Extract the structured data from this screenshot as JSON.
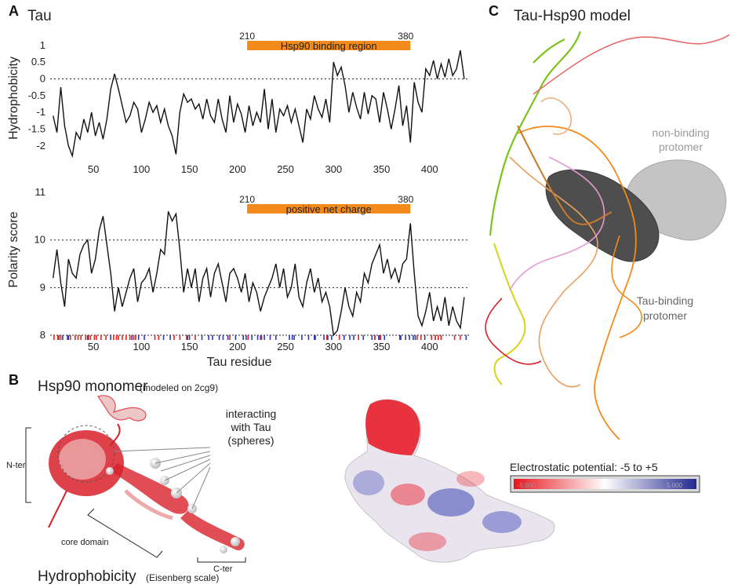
{
  "panels": {
    "a": {
      "letter": "A",
      "title": "Tau"
    },
    "b": {
      "letter": "B",
      "title": "Hsp90 monomer",
      "subtitle": "(modeled on 2cg9)"
    },
    "c": {
      "letter": "C",
      "title": "Tau-Hsp90 model"
    }
  },
  "chart_data": [
    {
      "type": "line",
      "id": "hydrophobicity",
      "ylabel": "Hydrophobicity",
      "xlabel": "",
      "xlim": [
        5,
        441
      ],
      "ylim": [
        -2.45,
        1.3
      ],
      "xticks": [
        50,
        100,
        150,
        200,
        250,
        300,
        350,
        400
      ],
      "yticks": [
        1,
        0.5,
        0,
        -0.5,
        -1,
        -1.5,
        -2
      ],
      "ytick_labels": [
        "1",
        "0.5",
        "0",
        "-0.5",
        "-1",
        "-1.5",
        "-2"
      ],
      "reference_lines": [
        0
      ],
      "region": {
        "start": 210,
        "end": 380,
        "label": "Hsp90 binding region",
        "color": "#f28a1c"
      },
      "x": [
        8,
        12,
        16,
        20,
        24,
        28,
        32,
        36,
        40,
        44,
        48,
        52,
        56,
        60,
        64,
        68,
        72,
        76,
        80,
        84,
        88,
        92,
        96,
        100,
        104,
        108,
        112,
        116,
        120,
        124,
        128,
        132,
        136,
        140,
        144,
        148,
        152,
        156,
        160,
        164,
        168,
        172,
        176,
        180,
        184,
        188,
        192,
        196,
        200,
        204,
        208,
        212,
        216,
        220,
        224,
        228,
        232,
        236,
        240,
        244,
        248,
        252,
        256,
        260,
        264,
        268,
        272,
        276,
        280,
        284,
        288,
        292,
        296,
        300,
        304,
        308,
        312,
        316,
        320,
        324,
        328,
        332,
        336,
        340,
        344,
        348,
        352,
        356,
        360,
        364,
        368,
        372,
        376,
        380,
        384,
        388,
        392,
        396,
        400,
        404,
        408,
        412,
        416,
        420,
        424,
        428,
        432,
        436
      ],
      "values": [
        -1.1,
        -1.6,
        -0.25,
        -1.4,
        -2.0,
        -2.3,
        -1.6,
        -1.8,
        -1.2,
        -1.6,
        -1.0,
        -1.7,
        -1.3,
        -1.8,
        -1.2,
        -0.3,
        0.15,
        -0.3,
        -0.8,
        -1.3,
        -1.1,
        -0.7,
        -0.9,
        -1.6,
        -1.2,
        -0.7,
        -1.0,
        -0.8,
        -1.3,
        -0.9,
        -1.4,
        -1.7,
        -2.25,
        -1.0,
        -0.45,
        -0.7,
        -0.6,
        -0.9,
        -0.75,
        -1.2,
        -0.6,
        -1.1,
        -1.3,
        -0.6,
        -1.2,
        -1.6,
        -0.5,
        -1.3,
        -0.75,
        -1.05,
        -1.6,
        -0.8,
        -1.4,
        -1.0,
        -1.3,
        -0.3,
        -1.5,
        -0.6,
        -1.6,
        -0.9,
        -1.1,
        -0.8,
        -1.3,
        -0.9,
        -1.4,
        -1.9,
        -0.9,
        -1.2,
        -0.5,
        -0.9,
        -1.15,
        -0.6,
        -1.3,
        0.5,
        0.1,
        0.35,
        -0.2,
        -1.0,
        -0.4,
        -0.85,
        -1.2,
        -0.4,
        -1.05,
        -0.5,
        -0.6,
        -1.3,
        -0.4,
        -0.9,
        -1.5,
        -0.9,
        -0.2,
        -1.4,
        -0.8,
        -1.9,
        -0.1,
        -0.7,
        -1.0,
        0.3,
        0.1,
        0.55,
        0.0,
        0.45,
        0.05,
        0.6,
        0.1,
        0.3,
        0.85,
        0.0
      ]
    },
    {
      "type": "line",
      "id": "polarity",
      "ylabel": "Polarity score",
      "xlabel": "Tau residue",
      "xlim": [
        5,
        441
      ],
      "ylim": [
        7.9,
        11.2
      ],
      "xticks": [
        50,
        100,
        150,
        200,
        250,
        300,
        350,
        400
      ],
      "yticks": [
        8,
        9,
        10,
        11
      ],
      "ytick_labels": [
        "8",
        "9",
        "10",
        "11"
      ],
      "reference_lines": [
        8,
        9,
        10
      ],
      "region": {
        "start": 210,
        "end": 380,
        "label": "positive net charge",
        "color": "#f28a1c"
      },
      "x": [
        8,
        12,
        16,
        20,
        24,
        28,
        32,
        36,
        40,
        44,
        48,
        52,
        56,
        60,
        64,
        68,
        72,
        76,
        80,
        84,
        88,
        92,
        96,
        100,
        104,
        108,
        112,
        116,
        120,
        124,
        128,
        132,
        136,
        140,
        144,
        148,
        152,
        156,
        160,
        164,
        168,
        172,
        176,
        180,
        184,
        188,
        192,
        196,
        200,
        204,
        208,
        212,
        216,
        220,
        224,
        228,
        232,
        236,
        240,
        244,
        248,
        252,
        256,
        260,
        264,
        268,
        272,
        276,
        280,
        284,
        288,
        292,
        296,
        300,
        304,
        308,
        312,
        316,
        320,
        324,
        328,
        332,
        336,
        340,
        344,
        348,
        352,
        356,
        360,
        364,
        368,
        372,
        376,
        380,
        384,
        388,
        392,
        396,
        400,
        404,
        408,
        412,
        416,
        420,
        424,
        428,
        432,
        436
      ],
      "values": [
        9.2,
        9.8,
        9.1,
        8.6,
        9.6,
        9.3,
        9.2,
        9.7,
        9.9,
        10.0,
        9.3,
        9.6,
        10.2,
        10.5,
        9.9,
        9.3,
        8.5,
        9.0,
        8.6,
        8.9,
        9.2,
        9.4,
        8.7,
        9.1,
        9.2,
        9.4,
        8.9,
        9.3,
        9.8,
        9.7,
        10.6,
        10.4,
        10.55,
        9.8,
        8.9,
        9.4,
        9.0,
        9.4,
        8.7,
        9.2,
        9.4,
        8.8,
        9.3,
        9.5,
        9.1,
        8.7,
        9.3,
        9.4,
        9.2,
        8.9,
        9.3,
        8.7,
        9.1,
        8.9,
        8.5,
        8.8,
        9.0,
        9.2,
        9.5,
        9.0,
        9.4,
        8.8,
        9.0,
        9.5,
        8.8,
        8.6,
        9.1,
        9.4,
        8.9,
        9.2,
        8.7,
        8.9,
        8.6,
        8.0,
        8.1,
        8.5,
        9.0,
        8.6,
        8.4,
        8.9,
        8.7,
        9.3,
        9.1,
        9.5,
        9.7,
        9.9,
        9.3,
        9.6,
        9.2,
        9.4,
        9.1,
        9.5,
        9.6,
        10.35,
        9.3,
        8.4,
        8.2,
        8.5,
        8.9,
        8.3,
        8.6,
        8.3,
        8.8,
        8.2,
        8.6,
        8.3,
        8.15,
        8.8
      ]
    }
  ],
  "charge_ticks": {
    "positive_color": "#2b3cb0",
    "negative_color": "#e0241f",
    "positive_residues": [
      18,
      23,
      24,
      44,
      68,
      90,
      97,
      103,
      123,
      130,
      148,
      150,
      163,
      170,
      174,
      181,
      185,
      190,
      198,
      206,
      209,
      215,
      221,
      224,
      225,
      228,
      234,
      240,
      254,
      257,
      259,
      267,
      274,
      280,
      281,
      290,
      294,
      298,
      311,
      317,
      321,
      331,
      340,
      343,
      347,
      349,
      353,
      369,
      370,
      375,
      379,
      383,
      385,
      395,
      406,
      412,
      438
    ],
    "negative_residues": [
      9,
      13,
      14,
      16,
      26,
      31,
      34,
      37,
      42,
      45,
      47,
      51,
      53,
      58,
      63,
      71,
      74,
      76,
      80,
      84,
      88,
      92,
      94,
      114,
      118,
      134,
      140,
      147,
      156,
      192,
      211,
      225,
      293,
      306,
      326,
      343,
      348,
      349,
      387,
      391,
      402,
      406,
      409,
      412,
      426,
      432
    ]
  },
  "hsp90_panel": {
    "nter_label": "N-ter",
    "core_label": "core domain",
    "cter_label": "C-ter",
    "interacting_label": [
      "interacting",
      "with Tau",
      "(spheres)"
    ],
    "hydrophobicity_label": "Hydrophobicity",
    "scale_label": "(Eisenberg scale)"
  },
  "electrostatic": {
    "label": "Electrostatic potential:  -5 to +5",
    "min_text": "-5.000",
    "max_text": "5.000",
    "neg_color": "#e8141e",
    "mid_color": "#ffffff",
    "pos_color": "#23288f"
  },
  "model_panel": {
    "non_binding": [
      "non-binding",
      "protomer"
    ],
    "tau_binding": [
      "Tau-binding",
      "protomer"
    ]
  },
  "colors": {
    "line": "#111111",
    "orange": "#f28a1c",
    "red_ribbon": "#d8202a",
    "green": "#7bc21d",
    "yellow": "#d9d21a",
    "pink": "#e79ad0",
    "light_gray": "#bdbdbd",
    "dark_gray": "#4e4e4e"
  }
}
